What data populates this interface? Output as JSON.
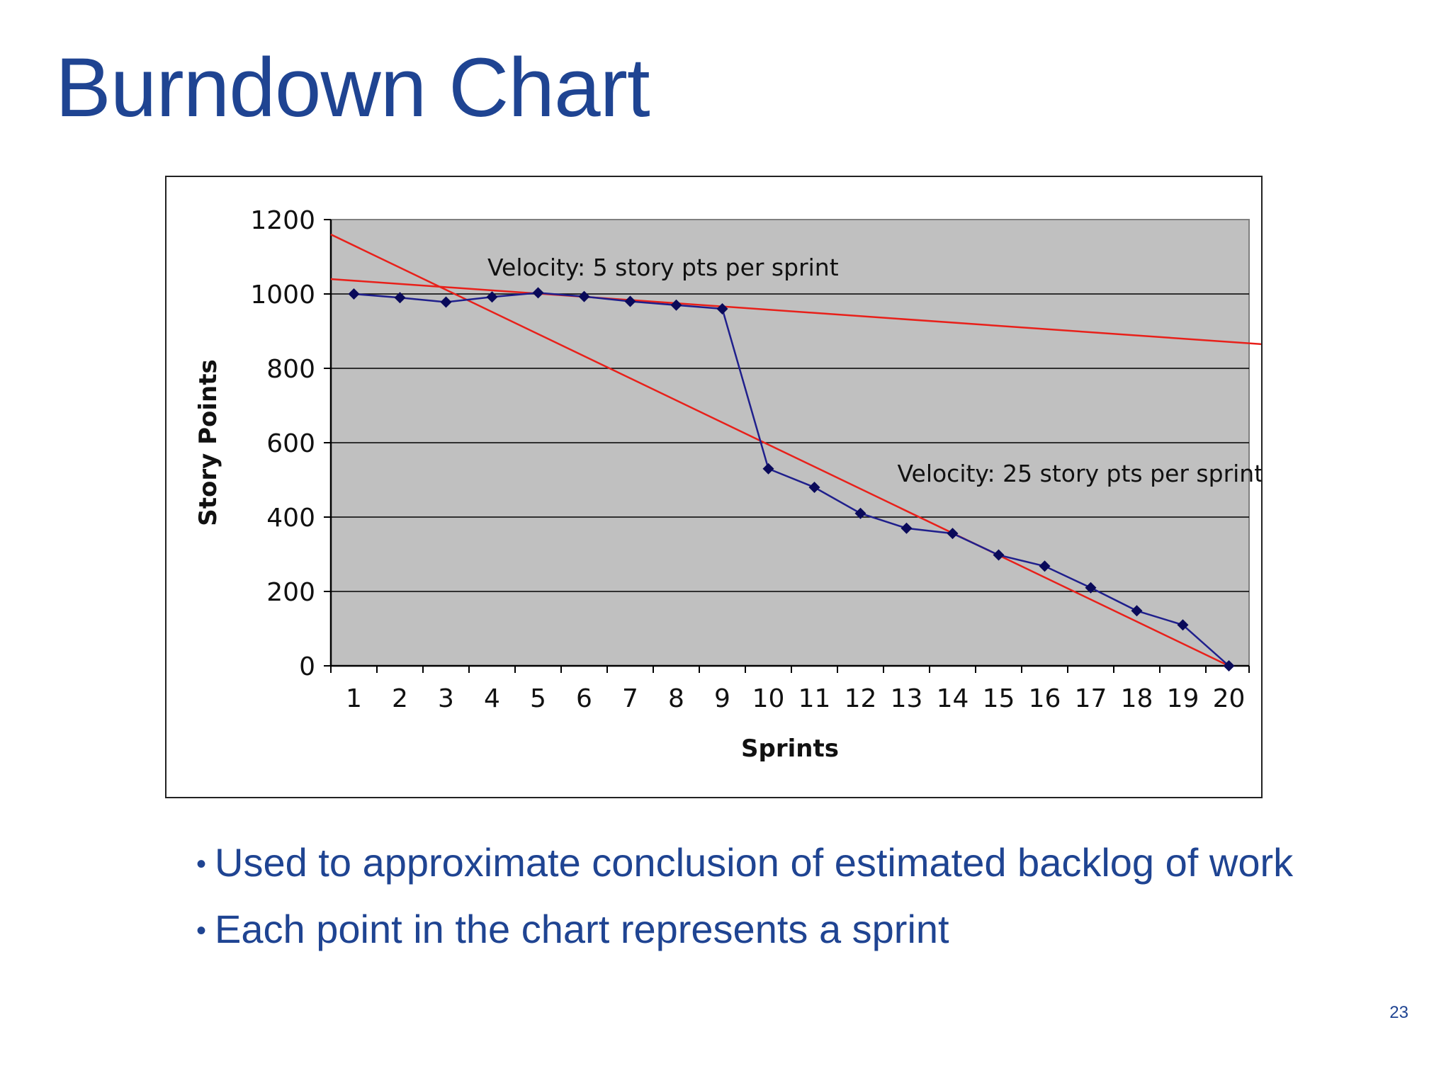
{
  "slide": {
    "title": "Burndown Chart",
    "page_number": "23",
    "bullets": [
      "Used to approximate conclusion of estimated backlog of work",
      "Each point in the chart represents a sprint"
    ]
  },
  "colors": {
    "title_text": "#1f4492",
    "plot_background": "#c0c0c0",
    "series_line": "#1f1f8c",
    "series_marker": "#0a0a5a",
    "trend_line": "#e8201a",
    "grid": "#000000"
  },
  "chart_data": {
    "type": "line",
    "title": "",
    "xlabel": "Sprints",
    "ylabel": "Story Points",
    "categories": [
      "1",
      "2",
      "3",
      "4",
      "5",
      "6",
      "7",
      "8",
      "9",
      "10",
      "11",
      "12",
      "13",
      "14",
      "15",
      "16",
      "17",
      "18",
      "19",
      "20"
    ],
    "yticks": [
      0,
      200,
      400,
      600,
      800,
      1000,
      1200
    ],
    "ylim": [
      0,
      1200
    ],
    "grid": true,
    "series": [
      {
        "values": [
          1000,
          990,
          978,
          992,
          1003,
          993,
          980,
          970,
          960,
          530,
          480,
          410,
          370,
          356,
          298,
          268,
          210,
          148,
          110,
          0
        ]
      }
    ],
    "trend_lines": [
      {
        "label": "Velocity: 5 story pts per sprint",
        "x0": 0.5,
        "y0": 1040,
        "x1": 20.7,
        "y1": 865,
        "label_at": {
          "x": 3.9,
          "y": 1050
        }
      },
      {
        "label": "Velocity: 25 story pts per sprint",
        "x0": 0.5,
        "y0": 1160,
        "x1": 20,
        "y1": 0,
        "label_at": {
          "x": 12.8,
          "y": 495
        }
      }
    ]
  }
}
